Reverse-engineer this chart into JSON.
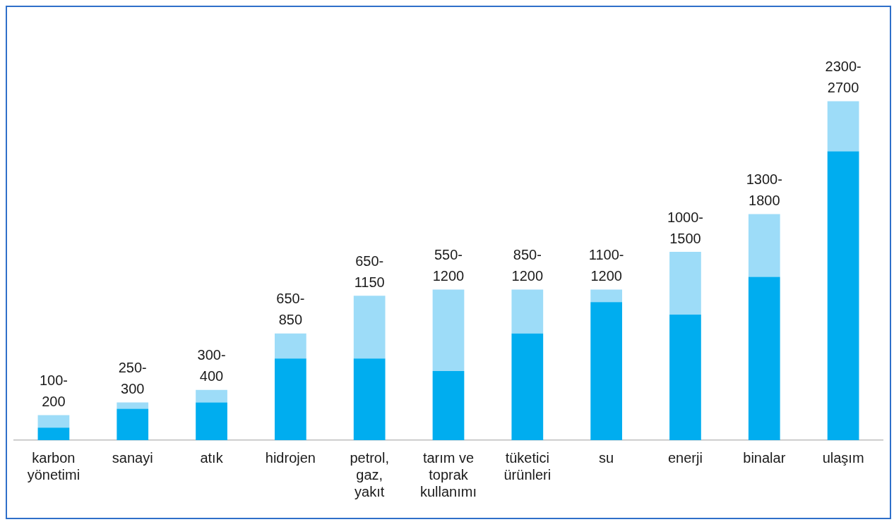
{
  "chart_data": {
    "type": "bar",
    "stacked": true,
    "categories": [
      "karbon yönetimi",
      "sanayi",
      "atık",
      "hidrojen",
      "petrol, gaz, yakıt",
      "tarım ve toprak kullanımı",
      "tüketici ürünleri",
      "su",
      "enerji",
      "binalar",
      "ulaşım"
    ],
    "series": [
      {
        "color": "#00adef",
        "values": [
          100,
          250,
          300,
          650,
          650,
          550,
          850,
          1100,
          1000,
          1300,
          2300
        ]
      },
      {
        "color": "#9ddcf8",
        "values": [
          100,
          50,
          100,
          200,
          500,
          650,
          350,
          100,
          500,
          500,
          400
        ],
        "value_labels": [
          "100-200",
          "250-300",
          "300-400",
          "650-850",
          "650-1150",
          "550-1200",
          "850-1200",
          "1100-1200",
          "1000-1500",
          "1300-1800",
          "2300-2700"
        ]
      }
    ],
    "grid": false,
    "legend": false
  }
}
